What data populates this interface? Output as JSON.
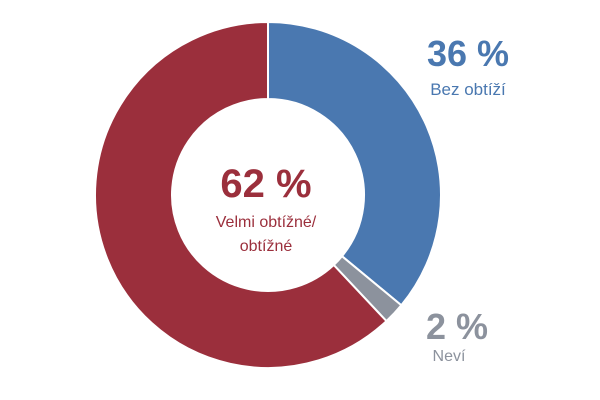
{
  "chart_data": {
    "type": "donut",
    "series": [
      {
        "name": "Bez obtíží",
        "value": 36,
        "percent_label": "36 %",
        "color": "#4a78b0"
      },
      {
        "name": "Neví",
        "value": 2,
        "percent_label": "2 %",
        "color": "#8c929d"
      },
      {
        "name": "Velmi obtížné/obtížné",
        "label_lines": [
          "Velmi obtížné/",
          "obtížné"
        ],
        "value": 62,
        "percent_label": "62 %",
        "color": "#9b2f3c"
      }
    ],
    "start_angle": "top",
    "direction": "clockwise",
    "center_label": "series.2",
    "legend": "none"
  }
}
